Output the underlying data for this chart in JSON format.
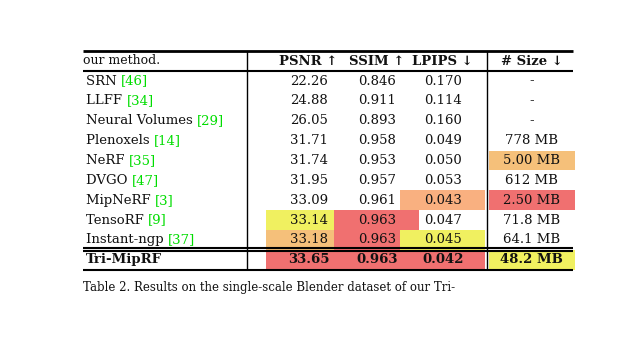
{
  "title_top": "our method.",
  "caption": "Table 2. Results on the single-scale Blender dataset of our Tri-",
  "rows": [
    {
      "method_base": "SRN ",
      "method_ref": "[46]",
      "psnr": "22.26",
      "ssim": "0.846",
      "lpips": "0.170",
      "size": "-",
      "psnr_bg": null,
      "ssim_bg": null,
      "lpips_bg": null,
      "size_bg": null
    },
    {
      "method_base": "LLFF ",
      "method_ref": "[34]",
      "psnr": "24.88",
      "ssim": "0.911",
      "lpips": "0.114",
      "size": "-",
      "psnr_bg": null,
      "ssim_bg": null,
      "lpips_bg": null,
      "size_bg": null
    },
    {
      "method_base": "Neural Volumes ",
      "method_ref": "[29]",
      "psnr": "26.05",
      "ssim": "0.893",
      "lpips": "0.160",
      "size": "-",
      "psnr_bg": null,
      "ssim_bg": null,
      "lpips_bg": null,
      "size_bg": null
    },
    {
      "method_base": "Plenoxels ",
      "method_ref": "[14]",
      "psnr": "31.71",
      "ssim": "0.958",
      "lpips": "0.049",
      "size": "778 MB",
      "psnr_bg": null,
      "ssim_bg": null,
      "lpips_bg": null,
      "size_bg": null
    },
    {
      "method_base": "NeRF ",
      "method_ref": "[35]",
      "psnr": "31.74",
      "ssim": "0.953",
      "lpips": "0.050",
      "size": "5.00 MB",
      "psnr_bg": null,
      "ssim_bg": null,
      "lpips_bg": null,
      "size_bg": "#f5c07a"
    },
    {
      "method_base": "DVGO ",
      "method_ref": "[47]",
      "psnr": "31.95",
      "ssim": "0.957",
      "lpips": "0.053",
      "size": "612 MB",
      "psnr_bg": null,
      "ssim_bg": null,
      "lpips_bg": null,
      "size_bg": null
    },
    {
      "method_base": "MipNeRF ",
      "method_ref": "[3]",
      "psnr": "33.09",
      "ssim": "0.961",
      "lpips": "0.043",
      "size": "2.50 MB",
      "psnr_bg": null,
      "ssim_bg": null,
      "lpips_bg": "#f9b080",
      "size_bg": "#f07070"
    },
    {
      "method_base": "TensoRF ",
      "method_ref": "[9]",
      "psnr": "33.14",
      "ssim": "0.963",
      "lpips": "0.047",
      "size": "71.8 MB",
      "psnr_bg": "#f0f060",
      "ssim_bg": "#f07070",
      "lpips_bg": null,
      "size_bg": null
    },
    {
      "method_base": "Instant-ngp ",
      "method_ref": "[37]",
      "psnr": "33.18",
      "ssim": "0.963",
      "lpips": "0.045",
      "size": "64.1 MB",
      "psnr_bg": "#f5c07a",
      "ssim_bg": "#f07070",
      "lpips_bg": "#f0f060",
      "size_bg": null
    },
    {
      "method_base": "Tri-MipRF",
      "method_ref": "",
      "psnr": "33.65",
      "ssim": "0.963",
      "lpips": "0.042",
      "size": "48.2 MB",
      "psnr_bg": "#f07070",
      "ssim_bg": "#f07070",
      "lpips_bg": "#f07070",
      "size_bg": "#f0f060"
    }
  ],
  "col_headers": [
    "PSNR ↑",
    "SSIM ↑",
    "LPIPS ↓",
    "# Size ↓"
  ],
  "bold_last_row": true,
  "bg_color": "#ffffff",
  "text_color": "#111111",
  "ref_color": "#00dd00",
  "header_fontsize": 9.5,
  "row_fontsize": 9.5,
  "caption_fontsize": 8.5,
  "title_fontsize": 9.0
}
